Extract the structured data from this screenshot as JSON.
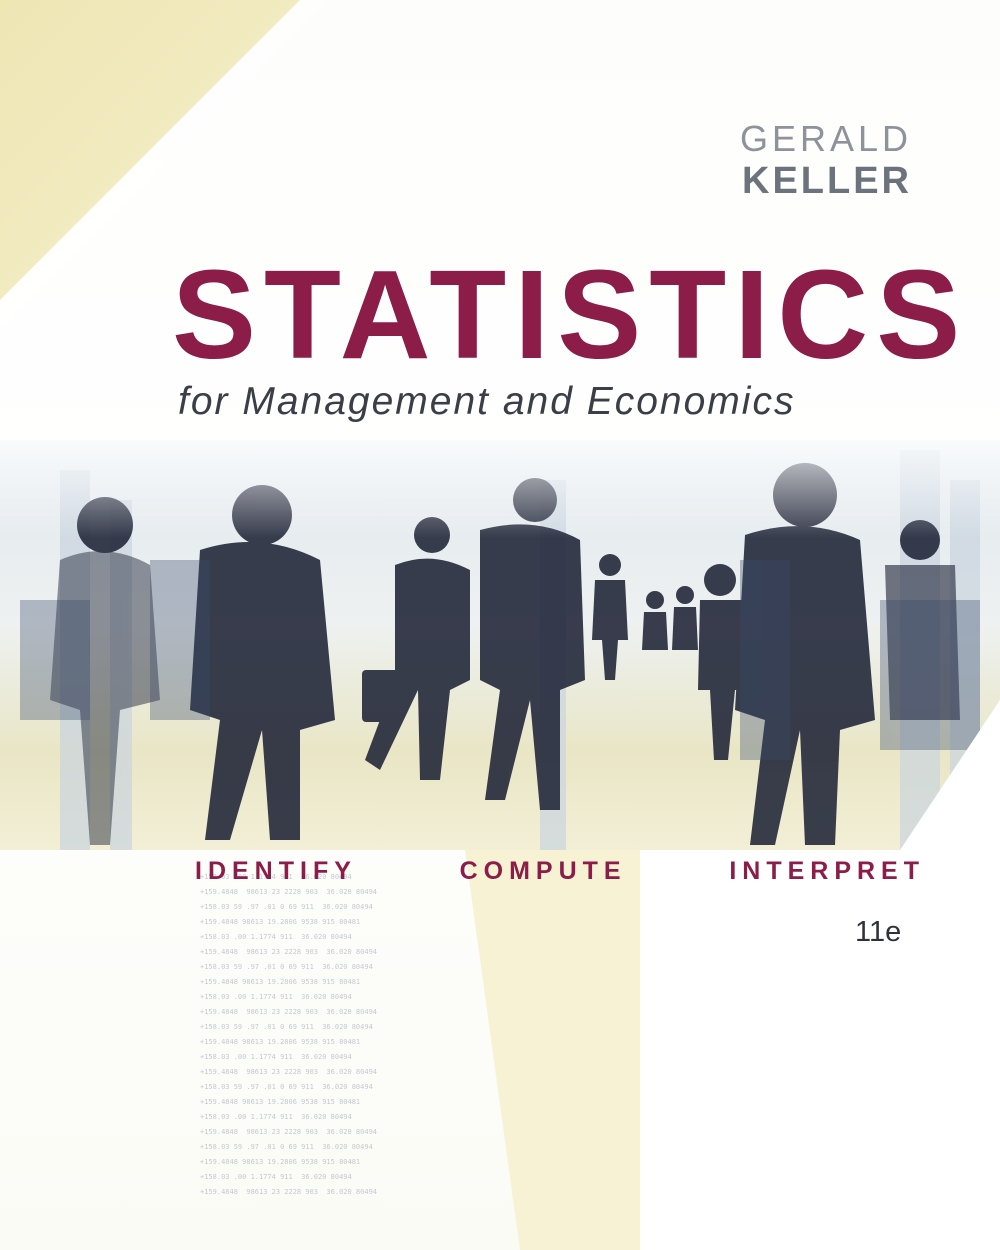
{
  "book": {
    "author_first": "GERALD",
    "author_last": "KELLER",
    "title": "STATISTICS",
    "subtitle": "for Management and Economics",
    "tagline": [
      "IDENTIFY",
      "COMPUTE",
      "INTERPRET"
    ],
    "edition": "11e"
  },
  "colors": {
    "title": "#8c1c48",
    "author": "#6c737c",
    "accent_cream": "#efe6b4"
  },
  "imagery": {
    "photo_icon": "business-people-walking-city-silhouette-photo"
  }
}
